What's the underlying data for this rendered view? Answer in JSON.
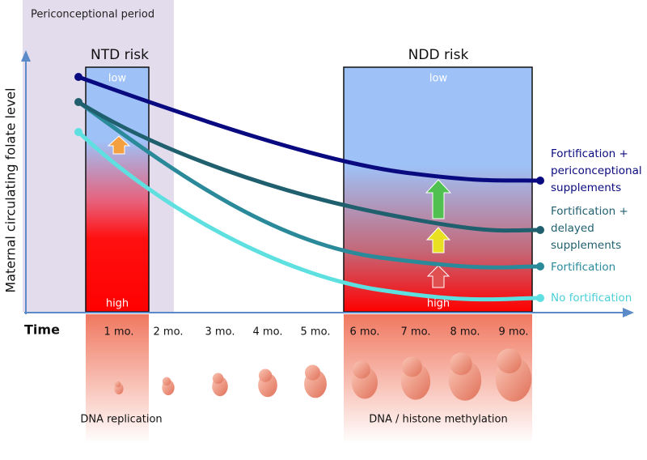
{
  "header": {
    "title": "Periconceptional period"
  },
  "axes": {
    "y_label": "Maternal circulating folate level",
    "x_label": "Time"
  },
  "regions": [
    {
      "title": "NTD risk",
      "low": "low",
      "high": "high"
    },
    {
      "title": "NDD risk",
      "low": "low",
      "high": "high"
    }
  ],
  "months": [
    "1 mo.",
    "2 mo.",
    "3 mo.",
    "4 mo.",
    "5 mo.",
    "6 mo.",
    "7 mo.",
    "8 mo.",
    "9 mo."
  ],
  "curves": [
    {
      "lines": [
        "Fortification +",
        "periconceptional",
        "supplements"
      ]
    },
    {
      "lines": [
        "Fortification +",
        "delayed",
        "supplements"
      ]
    },
    {
      "lines": [
        "Fortification"
      ]
    },
    {
      "lines": [
        "No fortification"
      ]
    }
  ],
  "processes": [
    "DNA replication",
    "DNA / histone methylation"
  ]
}
